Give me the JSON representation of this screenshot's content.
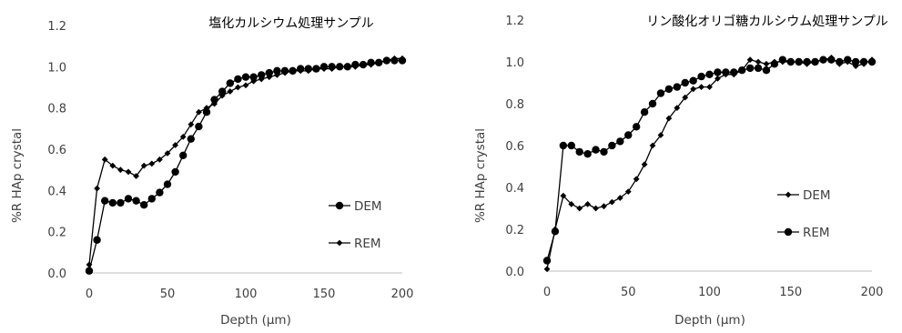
{
  "chart_data": [
    {
      "type": "line",
      "title": "塩化カルシウム処理サンプル",
      "xlabel": "Depth (µm)",
      "ylabel": "%R  HAp crystal",
      "xlim": [
        0,
        200
      ],
      "ylim": [
        0,
        1.2
      ],
      "xticks": [
        0,
        50,
        100,
        150,
        200
      ],
      "yticks": [
        "0.0",
        "0.2",
        "0.4",
        "0.6",
        "0.8",
        "1.0",
        "1.2"
      ],
      "grid": false,
      "legend_position": "bottom-right",
      "series": [
        {
          "name": "DEM",
          "marker": "circle",
          "color": "#000000",
          "x": [
            0,
            5,
            10,
            15,
            20,
            25,
            30,
            35,
            40,
            45,
            50,
            55,
            60,
            65,
            70,
            75,
            80,
            85,
            90,
            95,
            100,
            105,
            110,
            115,
            120,
            125,
            130,
            135,
            140,
            145,
            150,
            155,
            160,
            165,
            170,
            175,
            180,
            185,
            190,
            195,
            200
          ],
          "y": [
            0.01,
            0.16,
            0.35,
            0.34,
            0.34,
            0.36,
            0.35,
            0.33,
            0.36,
            0.39,
            0.43,
            0.49,
            0.57,
            0.65,
            0.71,
            0.78,
            0.84,
            0.88,
            0.92,
            0.94,
            0.95,
            0.95,
            0.96,
            0.97,
            0.98,
            0.98,
            0.98,
            0.99,
            0.99,
            0.99,
            1.0,
            1.0,
            1.0,
            1.0,
            1.01,
            1.01,
            1.02,
            1.02,
            1.03,
            1.03,
            1.03
          ]
        },
        {
          "name": "REM",
          "marker": "diamond",
          "color": "#000000",
          "x": [
            0,
            5,
            10,
            15,
            20,
            25,
            30,
            35,
            40,
            45,
            50,
            55,
            60,
            65,
            70,
            75,
            80,
            85,
            90,
            95,
            100,
            105,
            110,
            115,
            120,
            125,
            130,
            135,
            140,
            145,
            150,
            155,
            160,
            165,
            170,
            175,
            180,
            185,
            190,
            195,
            200
          ],
          "y": [
            0.04,
            0.41,
            0.55,
            0.52,
            0.5,
            0.49,
            0.47,
            0.52,
            0.53,
            0.55,
            0.58,
            0.62,
            0.66,
            0.72,
            0.78,
            0.8,
            0.82,
            0.86,
            0.88,
            0.9,
            0.91,
            0.93,
            0.94,
            0.95,
            0.96,
            0.97,
            0.98,
            0.98,
            0.98,
            0.99,
            0.99,
            0.99,
            1.0,
            1.0,
            1.0,
            1.01,
            1.01,
            1.02,
            1.03,
            1.04,
            1.04
          ]
        }
      ],
      "legend": [
        {
          "name": "DEM",
          "marker": "circle"
        },
        {
          "name": "REM",
          "marker": "diamond"
        }
      ]
    },
    {
      "type": "line",
      "title": "リン酸化オリゴ糖カルシウム処理サンプル",
      "xlabel": "Depth (µm)",
      "ylabel": "%R  HAp crystal",
      "xlim": [
        0,
        200
      ],
      "ylim": [
        0,
        1.2
      ],
      "xticks": [
        0,
        50,
        100,
        150,
        200
      ],
      "yticks": [
        "0.0",
        "0.2",
        "0.4",
        "0.6",
        "0.8",
        "1.0",
        "1.2"
      ],
      "grid": false,
      "legend_position": "bottom-right",
      "series": [
        {
          "name": "DEM",
          "marker": "diamond",
          "color": "#000000",
          "x": [
            0,
            5,
            10,
            15,
            20,
            25,
            30,
            35,
            40,
            45,
            50,
            55,
            60,
            65,
            70,
            75,
            80,
            85,
            90,
            95,
            100,
            105,
            110,
            115,
            120,
            125,
            130,
            135,
            140,
            145,
            150,
            155,
            160,
            165,
            170,
            175,
            180,
            185,
            190,
            195,
            200
          ],
          "y": [
            0.01,
            0.2,
            0.36,
            0.32,
            0.3,
            0.32,
            0.3,
            0.31,
            0.33,
            0.35,
            0.38,
            0.44,
            0.51,
            0.6,
            0.65,
            0.73,
            0.78,
            0.83,
            0.87,
            0.88,
            0.88,
            0.92,
            0.94,
            0.94,
            0.96,
            1.01,
            1.0,
            0.99,
            1.0,
            1.0,
            1.0,
            1.0,
            0.99,
            1.0,
            1.01,
            1.02,
            0.99,
            1.0,
            0.98,
            0.99,
            1.01
          ]
        },
        {
          "name": "REM",
          "marker": "circle",
          "color": "#000000",
          "x": [
            0,
            5,
            10,
            15,
            20,
            25,
            30,
            35,
            40,
            45,
            50,
            55,
            60,
            65,
            70,
            75,
            80,
            85,
            90,
            95,
            100,
            105,
            110,
            115,
            120,
            125,
            130,
            135,
            140,
            145,
            150,
            155,
            160,
            165,
            170,
            175,
            180,
            185,
            190,
            195,
            200
          ],
          "y": [
            0.05,
            0.19,
            0.6,
            0.6,
            0.57,
            0.56,
            0.58,
            0.57,
            0.6,
            0.62,
            0.65,
            0.69,
            0.76,
            0.8,
            0.85,
            0.87,
            0.88,
            0.9,
            0.91,
            0.93,
            0.94,
            0.95,
            0.95,
            0.95,
            0.96,
            0.97,
            0.97,
            0.96,
            0.99,
            1.01,
            1.0,
            1.0,
            1.0,
            1.0,
            1.01,
            1.01,
            1.0,
            1.01,
            1.0,
            1.0,
            1.0
          ]
        }
      ],
      "legend": [
        {
          "name": "DEM",
          "marker": "diamond"
        },
        {
          "name": "REM",
          "marker": "circle"
        }
      ]
    }
  ]
}
